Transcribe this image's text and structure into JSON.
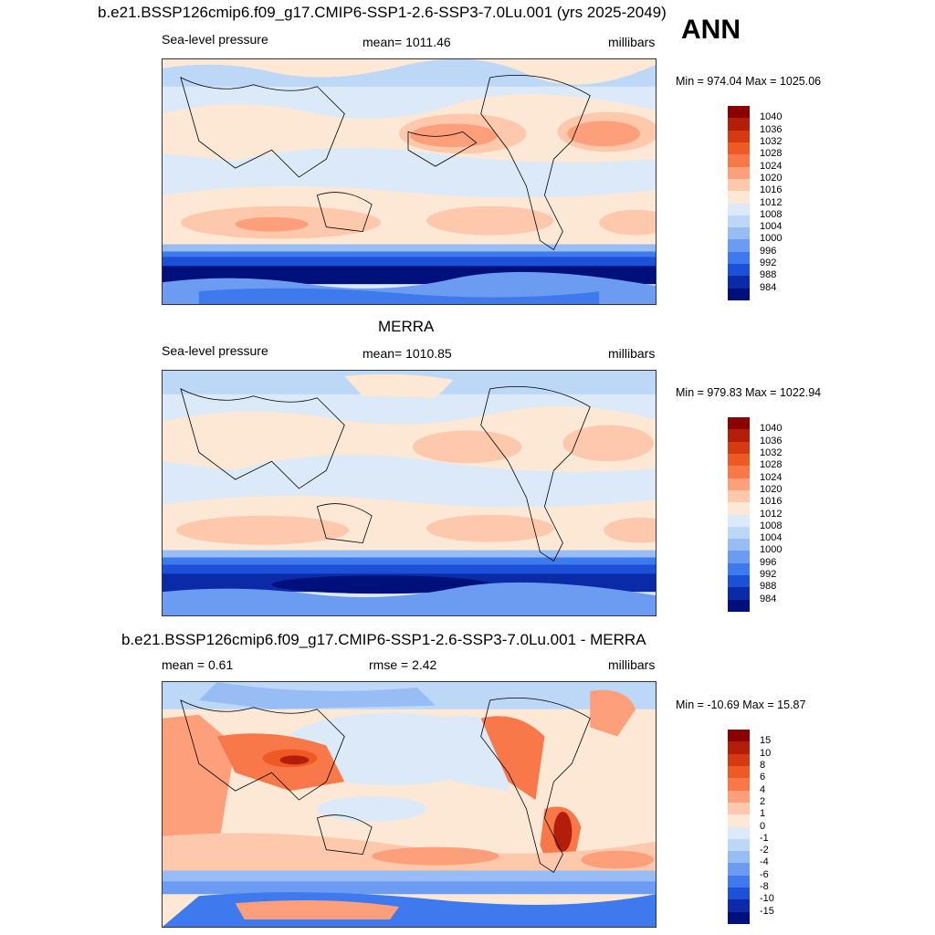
{
  "title": "b.e21.BSSP126cmip6.f09_g17.CMIP6-SSP1-2.6-SSP3-7.0Lu.001 (yrs 2025-2049)",
  "season": "ANN",
  "panels": [
    {
      "id": "model",
      "subtitle": "",
      "left_label": "Sea-level pressure",
      "center_label": "mean= 1011.46",
      "right_label": "millibars",
      "minmax": "Min = 974.04 Max = 1025.06",
      "colorbar_levels": [
        "1040",
        "1036",
        "1032",
        "1028",
        "1024",
        "1020",
        "1016",
        "1012",
        "1008",
        "1004",
        "1000",
        "996",
        "992",
        "988",
        "984"
      ],
      "colorbar_colors": [
        "#8b0000",
        "#b51d0b",
        "#d63a12",
        "#ef5a24",
        "#f9784a",
        "#fc9f7a",
        "#fdc8ac",
        "#fde8d6",
        "#dbe9f9",
        "#bdd7f7",
        "#98bdf5",
        "#6b9cf2",
        "#3f79ee",
        "#1d50d8",
        "#0a2aa8",
        "#00107a"
      ]
    },
    {
      "id": "obs",
      "subtitle": "MERRA",
      "left_label": "Sea-level pressure",
      "center_label": "mean= 1010.85",
      "right_label": "millibars",
      "minmax": "Min = 979.83 Max = 1022.94",
      "colorbar_levels": [
        "1040",
        "1036",
        "1032",
        "1028",
        "1024",
        "1020",
        "1016",
        "1012",
        "1008",
        "1004",
        "1000",
        "996",
        "992",
        "988",
        "984"
      ],
      "colorbar_colors": [
        "#8b0000",
        "#b51d0b",
        "#d63a12",
        "#ef5a24",
        "#f9784a",
        "#fc9f7a",
        "#fdc8ac",
        "#fde8d6",
        "#dbe9f9",
        "#bdd7f7",
        "#98bdf5",
        "#6b9cf2",
        "#3f79ee",
        "#1d50d8",
        "#0a2aa8",
        "#00107a"
      ]
    },
    {
      "id": "diff",
      "subtitle": "b.e21.BSSP126cmip6.f09_g17.CMIP6-SSP1-2.6-SSP3-7.0Lu.001 - MERRA",
      "left_label": "mean =   0.61",
      "center_label": "rmse =   2.42",
      "right_label": "millibars",
      "minmax": "Min = -10.69 Max =  15.87",
      "colorbar_levels": [
        "15",
        "10",
        "8",
        "6",
        "4",
        "2",
        "1",
        "0",
        "-1",
        "-2",
        "-4",
        "-6",
        "-8",
        "-10",
        "-15"
      ],
      "colorbar_colors": [
        "#8b0000",
        "#b51d0b",
        "#d63a12",
        "#ef5a24",
        "#f9784a",
        "#fc9f7a",
        "#fdc8ac",
        "#fde8d6",
        "#dbe9f9",
        "#bdd7f7",
        "#98bdf5",
        "#6b9cf2",
        "#3f79ee",
        "#1d50d8",
        "#0a2aa8",
        "#00107a"
      ]
    }
  ]
}
